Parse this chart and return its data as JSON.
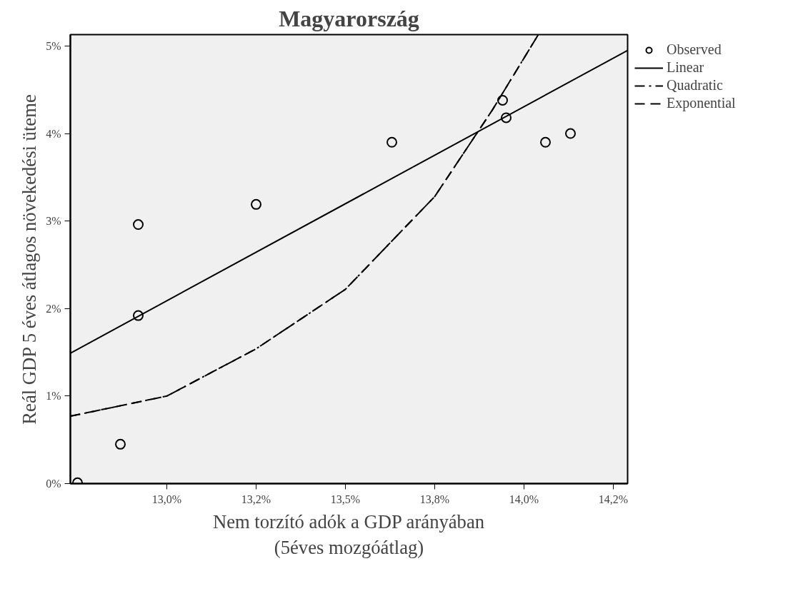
{
  "chart_data": {
    "type": "scatter",
    "title": "Magyarország",
    "xlabel": "Nem torzító adók a GDP arányában\n(5éves mozgóátlag)",
    "ylabel": "Reál GDP 5 éves átlagos növekedési üteme",
    "xlim": [
      12.73,
      14.29
    ],
    "ylim": [
      0,
      5.13
    ],
    "xticks": [
      {
        "value": 13.0,
        "label": "13,0%"
      },
      {
        "value": 13.25,
        "label": "13,2%"
      },
      {
        "value": 13.5,
        "label": "13,5%"
      },
      {
        "value": 13.75,
        "label": "13,8%"
      },
      {
        "value": 14.0,
        "label": "14,0%"
      },
      {
        "value": 14.25,
        "label": "14,2%"
      }
    ],
    "yticks": [
      {
        "value": 0,
        "label": "0%"
      },
      {
        "value": 1,
        "label": "1%"
      },
      {
        "value": 2,
        "label": "2%"
      },
      {
        "value": 3,
        "label": "3%"
      },
      {
        "value": 4,
        "label": "4%"
      },
      {
        "value": 5,
        "label": "5%"
      }
    ],
    "grid": false,
    "legend": "top right",
    "series": [
      {
        "name": "Observed",
        "marker": "circle",
        "color": "#000000",
        "x": [
          12.75,
          12.87,
          12.92,
          12.92,
          13.25,
          13.63,
          13.94,
          13.95,
          14.06,
          14.13
        ],
        "values": [
          0.01,
          0.45,
          2.96,
          1.92,
          3.19,
          3.9,
          4.38,
          4.18,
          3.9,
          4.0
        ]
      },
      {
        "name": "Linear",
        "type": "line",
        "line_style": "solid",
        "color": "#000000",
        "x": [
          12.73,
          14.29
        ],
        "values": [
          1.49,
          4.95
        ]
      },
      {
        "name": "Quadratic",
        "type": "line",
        "line_style": "dashdot",
        "color": "#000000",
        "x": [
          12.73,
          13.0,
          13.25,
          13.5,
          13.75,
          13.91,
          14.04
        ],
        "values": [
          0.77,
          1.0,
          1.54,
          2.22,
          3.28,
          4.26,
          5.13
        ]
      },
      {
        "name": "Exponential",
        "type": "line",
        "line_style": "dashed",
        "color": "#000000",
        "x": [
          12.73,
          13.0,
          13.25,
          13.5,
          13.75,
          13.91,
          14.04
        ],
        "values": [
          0.77,
          1.0,
          1.54,
          2.22,
          3.28,
          4.26,
          5.13
        ]
      }
    ]
  }
}
